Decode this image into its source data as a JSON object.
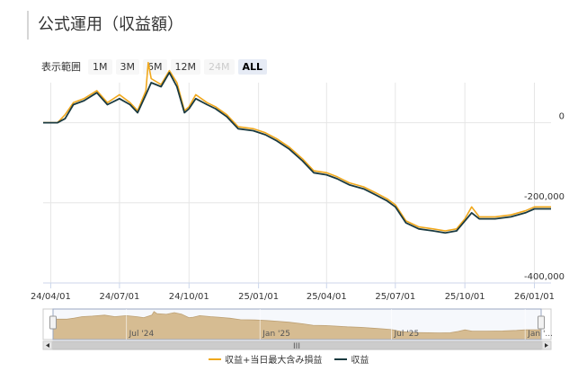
{
  "title": "公式運用（収益額）",
  "range_selector": {
    "label": "表示範囲",
    "buttons": [
      {
        "label": "1M",
        "state": "normal"
      },
      {
        "label": "3M",
        "state": "normal"
      },
      {
        "label": "6M",
        "state": "normal"
      },
      {
        "label": "12M",
        "state": "normal"
      },
      {
        "label": "24M",
        "state": "disabled"
      },
      {
        "label": "ALL",
        "state": "active"
      }
    ]
  },
  "colors": {
    "series_orange": "#f0a81c",
    "series_dark": "#1a3a40",
    "navigator_fill": "#c99a4a",
    "navigator_mask": "#e6ebf5"
  },
  "chart_data": {
    "type": "line",
    "title": "",
    "xlabel": "",
    "ylabel": "",
    "x_range": [
      "2024-03-22",
      "2026-01-23"
    ],
    "ylim": [
      -400000,
      100000
    ],
    "y_ticks": [
      0,
      -200000,
      -400000
    ],
    "y_tick_labels": [
      "0",
      "-200,000",
      "-400,000"
    ],
    "x_ticks": [
      "2024-04-01",
      "2024-07-01",
      "2024-10-01",
      "2025-01-01",
      "2025-04-01",
      "2025-07-01",
      "2025-10-01",
      "2026-01-01"
    ],
    "x_tick_labels": [
      "24/04/01",
      "24/07/01",
      "24/10/01",
      "25/01/01",
      "25/04/01",
      "25/07/01",
      "25/10/01",
      "26/01/01"
    ],
    "grid": true,
    "legend_position": "bottom-center",
    "series": [
      {
        "name": "収益+当日最大含み損益",
        "color": "#f0a81c",
        "points": [
          [
            "2024-03-22",
            0
          ],
          [
            "2024-04-10",
            0
          ],
          [
            "2024-04-20",
            20000
          ],
          [
            "2024-05-01",
            50000
          ],
          [
            "2024-05-15",
            60000
          ],
          [
            "2024-06-01",
            80000
          ],
          [
            "2024-06-15",
            50000
          ],
          [
            "2024-07-01",
            70000
          ],
          [
            "2024-07-15",
            50000
          ],
          [
            "2024-07-25",
            30000
          ],
          [
            "2024-08-05",
            80000
          ],
          [
            "2024-08-08",
            150000
          ],
          [
            "2024-08-12",
            110000
          ],
          [
            "2024-08-25",
            95000
          ],
          [
            "2024-09-05",
            130000
          ],
          [
            "2024-09-15",
            100000
          ],
          [
            "2024-09-25",
            30000
          ],
          [
            "2024-10-01",
            40000
          ],
          [
            "2024-10-10",
            70000
          ],
          [
            "2024-10-25",
            50000
          ],
          [
            "2024-11-05",
            40000
          ],
          [
            "2024-11-20",
            20000
          ],
          [
            "2024-12-05",
            -10000
          ],
          [
            "2024-12-25",
            -15000
          ],
          [
            "2025-01-10",
            -25000
          ],
          [
            "2025-01-25",
            -40000
          ],
          [
            "2025-02-10",
            -60000
          ],
          [
            "2025-02-28",
            -90000
          ],
          [
            "2025-03-15",
            -120000
          ],
          [
            "2025-04-01",
            -125000
          ],
          [
            "2025-04-15",
            -135000
          ],
          [
            "2025-05-01",
            -150000
          ],
          [
            "2025-05-20",
            -160000
          ],
          [
            "2025-06-05",
            -175000
          ],
          [
            "2025-06-20",
            -190000
          ],
          [
            "2025-07-01",
            -205000
          ],
          [
            "2025-07-15",
            -245000
          ],
          [
            "2025-08-01",
            -260000
          ],
          [
            "2025-08-20",
            -265000
          ],
          [
            "2025-09-05",
            -270000
          ],
          [
            "2025-09-20",
            -265000
          ],
          [
            "2025-10-01",
            -240000
          ],
          [
            "2025-10-10",
            -210000
          ],
          [
            "2025-10-20",
            -235000
          ],
          [
            "2025-11-10",
            -235000
          ],
          [
            "2025-12-01",
            -230000
          ],
          [
            "2025-12-20",
            -220000
          ],
          [
            "2026-01-01",
            -210000
          ],
          [
            "2026-01-23",
            -210000
          ]
        ]
      },
      {
        "name": "収益",
        "color": "#1a3a40",
        "points": [
          [
            "2024-03-22",
            0
          ],
          [
            "2024-04-10",
            0
          ],
          [
            "2024-04-20",
            10000
          ],
          [
            "2024-05-01",
            45000
          ],
          [
            "2024-05-15",
            55000
          ],
          [
            "2024-06-01",
            75000
          ],
          [
            "2024-06-15",
            45000
          ],
          [
            "2024-07-01",
            60000
          ],
          [
            "2024-07-15",
            45000
          ],
          [
            "2024-07-25",
            25000
          ],
          [
            "2024-08-05",
            70000
          ],
          [
            "2024-08-12",
            100000
          ],
          [
            "2024-08-25",
            90000
          ],
          [
            "2024-09-05",
            125000
          ],
          [
            "2024-09-15",
            90000
          ],
          [
            "2024-09-25",
            25000
          ],
          [
            "2024-10-01",
            35000
          ],
          [
            "2024-10-10",
            60000
          ],
          [
            "2024-10-25",
            45000
          ],
          [
            "2024-11-05",
            35000
          ],
          [
            "2024-11-20",
            15000
          ],
          [
            "2024-12-05",
            -15000
          ],
          [
            "2024-12-25",
            -20000
          ],
          [
            "2025-01-10",
            -30000
          ],
          [
            "2025-01-25",
            -45000
          ],
          [
            "2025-02-10",
            -65000
          ],
          [
            "2025-02-28",
            -95000
          ],
          [
            "2025-03-15",
            -125000
          ],
          [
            "2025-04-01",
            -130000
          ],
          [
            "2025-04-15",
            -140000
          ],
          [
            "2025-05-01",
            -155000
          ],
          [
            "2025-05-20",
            -165000
          ],
          [
            "2025-06-05",
            -180000
          ],
          [
            "2025-06-20",
            -195000
          ],
          [
            "2025-07-01",
            -210000
          ],
          [
            "2025-07-15",
            -250000
          ],
          [
            "2025-08-01",
            -265000
          ],
          [
            "2025-08-20",
            -270000
          ],
          [
            "2025-09-05",
            -275000
          ],
          [
            "2025-09-20",
            -270000
          ],
          [
            "2025-10-01",
            -245000
          ],
          [
            "2025-10-10",
            -225000
          ],
          [
            "2025-10-20",
            -240000
          ],
          [
            "2025-11-10",
            -240000
          ],
          [
            "2025-12-01",
            -235000
          ],
          [
            "2025-12-20",
            -225000
          ],
          [
            "2026-01-01",
            -215000
          ],
          [
            "2026-01-23",
            -215000
          ]
        ]
      }
    ],
    "navigator": {
      "x_tick_labels": [
        "Jul '24",
        "Jan '25",
        "Jul '25",
        "Jan '..."
      ],
      "scrollbar_grip": "III"
    }
  }
}
